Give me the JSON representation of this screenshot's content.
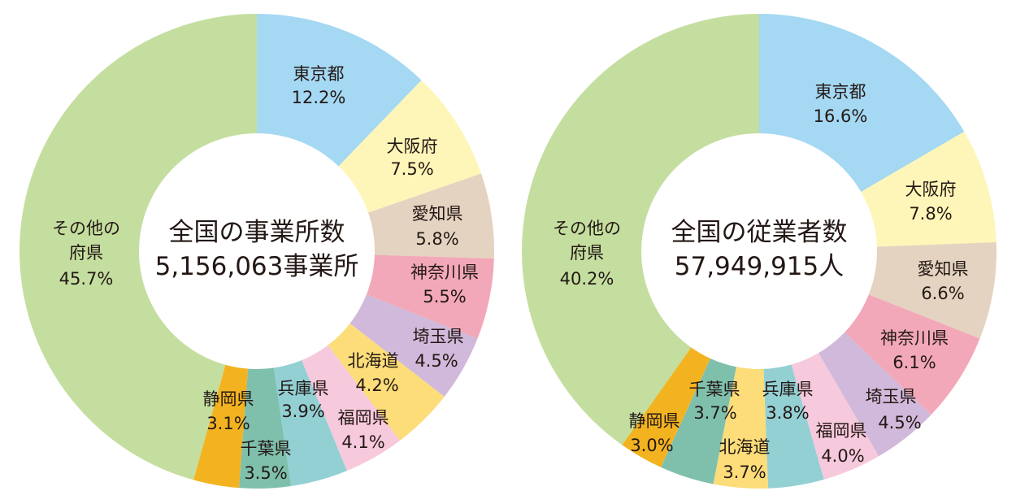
{
  "chart_data": [
    {
      "type": "pie",
      "variant": "donut",
      "title": "全国の事業所数",
      "subtitle": "5,156,063事業所",
      "categories": [
        "東京都",
        "大阪府",
        "愛知県",
        "神奈川県",
        "埼玉県",
        "北海道",
        "福岡県",
        "兵庫県",
        "千葉県",
        "静岡県",
        "その他の府県"
      ],
      "values": [
        12.2,
        7.5,
        5.8,
        5.5,
        4.5,
        4.2,
        4.1,
        3.9,
        3.5,
        3.1,
        45.7
      ],
      "unit": "%",
      "colors": [
        "#a4d8f3",
        "#fdf6b8",
        "#e4d3c0",
        "#f2a8b8",
        "#d0b9da",
        "#fcdd7a",
        "#f7c9dc",
        "#93d0d4",
        "#7fc0ad",
        "#f3b320",
        "#c4de9f"
      ],
      "labels": [
        {
          "name": "東京都",
          "value": "12.2%"
        },
        {
          "name": "大阪府",
          "value": "7.5%"
        },
        {
          "name": "愛知県",
          "value": "5.8%"
        },
        {
          "name": "神奈川県",
          "value": "5.5%"
        },
        {
          "name": "埼玉県",
          "value": "4.5%"
        },
        {
          "name": "北海道",
          "value": "4.2%"
        },
        {
          "name": "福岡県",
          "value": "4.1%"
        },
        {
          "name": "兵庫県",
          "value": "3.9%"
        },
        {
          "name": "千葉県",
          "value": "3.5%"
        },
        {
          "name": "静岡県",
          "value": "3.1%"
        },
        {
          "name": "その他の府県",
          "name_lines": [
            "その他の",
            "府県"
          ],
          "value": "45.7%"
        }
      ]
    },
    {
      "type": "pie",
      "variant": "donut",
      "title": "全国の従業者数",
      "subtitle": "57,949,915人",
      "categories": [
        "東京都",
        "大阪府",
        "愛知県",
        "神奈川県",
        "埼玉県",
        "福岡県",
        "兵庫県",
        "北海道",
        "千葉県",
        "静岡県",
        "その他の府県"
      ],
      "values": [
        16.6,
        7.8,
        6.6,
        6.1,
        4.5,
        4.0,
        3.8,
        3.7,
        3.7,
        3.0,
        40.2
      ],
      "unit": "%",
      "colors": [
        "#a4d8f3",
        "#fdf6b8",
        "#e4d3c0",
        "#f2a8b8",
        "#d0b9da",
        "#f7c9dc",
        "#93d0d4",
        "#fcdd7a",
        "#7fc0ad",
        "#f3b320",
        "#c4de9f"
      ],
      "labels": [
        {
          "name": "東京都",
          "value": "16.6%"
        },
        {
          "name": "大阪府",
          "value": "7.8%"
        },
        {
          "name": "愛知県",
          "value": "6.6%"
        },
        {
          "name": "神奈川県",
          "value": "6.1%"
        },
        {
          "name": "埼玉県",
          "value": "4.5%"
        },
        {
          "name": "福岡県",
          "value": "4.0%"
        },
        {
          "name": "兵庫県",
          "value": "3.8%"
        },
        {
          "name": "北海道",
          "value": "3.7%"
        },
        {
          "name": "千葉県",
          "value": "3.7%"
        },
        {
          "name": "静岡県",
          "value": "3.0%"
        },
        {
          "name": "その他の府県",
          "name_lines": [
            "その他の",
            "府県"
          ],
          "value": "40.2%"
        }
      ]
    }
  ]
}
